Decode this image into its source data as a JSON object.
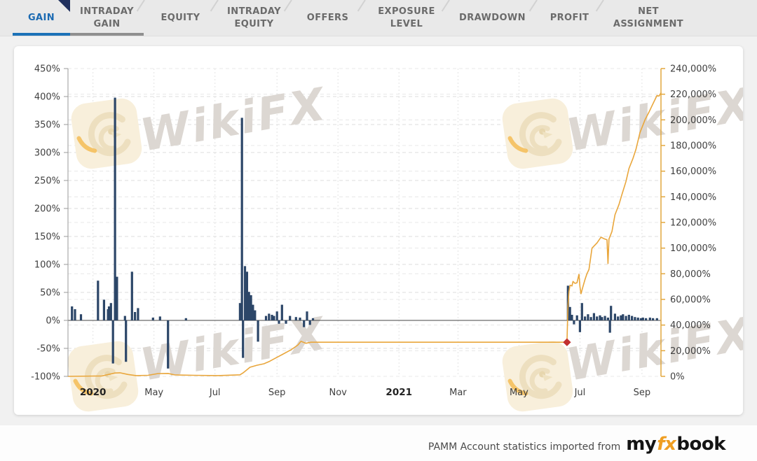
{
  "tabs": {
    "items": [
      {
        "label": "GAIN",
        "active": true
      },
      {
        "label": "INTRADAY GAIN",
        "active": false
      },
      {
        "label": "EQUITY",
        "active": false
      },
      {
        "label": "INTRADAY EQUITY",
        "active": false
      },
      {
        "label": "OFFERS",
        "active": false
      },
      {
        "label": "EXPOSURE LEVEL",
        "active": false
      },
      {
        "label": "DRAWDOWN",
        "active": false
      },
      {
        "label": "PROFIT",
        "active": false
      },
      {
        "label": "NET ASSIGNMENT",
        "active": false
      }
    ]
  },
  "watermark": {
    "text": "WikiFX"
  },
  "footer": {
    "attribution": "PAMM Account statistics imported from",
    "logo_part1": "my",
    "logo_part2": "fx",
    "logo_part3": "book"
  },
  "colors": {
    "bar": "#2c4668",
    "line": "#e9a63b",
    "marker": "#c22f2f",
    "tab_active": "#1b6ab2",
    "underline_active": "#1c72b8",
    "underline_neighbor": "#8f8f8f",
    "axis_left": "#9a9a9a",
    "axis_right": "#e2a73e",
    "zero_line": "#444444",
    "tick_text": "#3f3f3f",
    "watermark_text": "#dcd7d2",
    "watermark_logo_bg": "#f8efdb"
  },
  "chart_data": {
    "type": "combo",
    "x_range": [
      "2020-02-05",
      "2021-09-20"
    ],
    "x_ticks": [
      {
        "label": "2020",
        "date": "2020-03-01",
        "bold": true
      },
      {
        "label": "May",
        "date": "2020-05-01",
        "bold": false
      },
      {
        "label": "Jul",
        "date": "2020-07-01",
        "bold": false
      },
      {
        "label": "Sep",
        "date": "2020-09-01",
        "bold": false
      },
      {
        "label": "Nov",
        "date": "2020-11-01",
        "bold": false
      },
      {
        "label": "2021",
        "date": "2021-01-01",
        "bold": true
      },
      {
        "label": "Mar",
        "date": "2021-03-01",
        "bold": false
      },
      {
        "label": "May",
        "date": "2021-05-01",
        "bold": false
      },
      {
        "label": "Jul",
        "date": "2021-07-01",
        "bold": false
      },
      {
        "label": "Sep",
        "date": "2021-09-01",
        "bold": false
      }
    ],
    "left_axis": {
      "min": -100,
      "max": 450,
      "step": 50,
      "ticks": [
        {
          "label": "450%",
          "value": 450
        },
        {
          "label": "400%",
          "value": 400
        },
        {
          "label": "350%",
          "value": 350
        },
        {
          "label": "300%",
          "value": 300
        },
        {
          "label": "250%",
          "value": 250
        },
        {
          "label": "200%",
          "value": 200
        },
        {
          "label": "150%",
          "value": 150
        },
        {
          "label": "100%",
          "value": 100
        },
        {
          "label": "50%",
          "value": 50
        },
        {
          "label": "0%",
          "value": 0
        },
        {
          "label": "-50%",
          "value": -50
        },
        {
          "label": "-100%",
          "value": -100
        }
      ]
    },
    "right_axis": {
      "min": 0,
      "max": 240000,
      "step": 20000,
      "ticks": [
        {
          "label": "240,000%",
          "value": 240000
        },
        {
          "label": "220,000%",
          "value": 220000
        },
        {
          "label": "200,000%",
          "value": 200000
        },
        {
          "label": "180,000%",
          "value": 180000
        },
        {
          "label": "160,000%",
          "value": 160000
        },
        {
          "label": "140,000%",
          "value": 140000
        },
        {
          "label": "120,000%",
          "value": 120000
        },
        {
          "label": "100,000%",
          "value": 100000
        },
        {
          "label": "80,000%",
          "value": 80000
        },
        {
          "label": "60,000%",
          "value": 60000
        },
        {
          "label": "40,000%",
          "value": 40000
        },
        {
          "label": "20,000%",
          "value": 20000
        },
        {
          "label": "0%",
          "value": 0
        }
      ]
    },
    "series": [
      {
        "name": "daily-gain-bars",
        "type": "bar",
        "axis": "left",
        "points": [
          [
            "2020-02-09",
            25
          ],
          [
            "2020-02-12",
            20
          ],
          [
            "2020-02-18",
            11
          ],
          [
            "2020-03-06",
            71
          ],
          [
            "2020-03-12",
            37
          ],
          [
            "2020-03-16",
            20
          ],
          [
            "2020-03-17",
            25
          ],
          [
            "2020-03-19",
            31
          ],
          [
            "2020-03-21",
            -77
          ],
          [
            "2020-03-23",
            398
          ],
          [
            "2020-03-25",
            78
          ],
          [
            "2020-04-02",
            8
          ],
          [
            "2020-04-03",
            -74
          ],
          [
            "2020-04-09",
            87
          ],
          [
            "2020-04-12",
            15
          ],
          [
            "2020-04-15",
            22
          ],
          [
            "2020-04-30",
            5
          ],
          [
            "2020-05-07",
            7
          ],
          [
            "2020-05-15",
            -86
          ],
          [
            "2020-06-02",
            4
          ],
          [
            "2020-07-26",
            31
          ],
          [
            "2020-07-28",
            362
          ],
          [
            "2020-07-29",
            -67
          ],
          [
            "2020-07-31",
            97
          ],
          [
            "2020-08-02",
            87
          ],
          [
            "2020-08-04",
            51
          ],
          [
            "2020-08-06",
            45
          ],
          [
            "2020-08-08",
            28
          ],
          [
            "2020-08-10",
            18
          ],
          [
            "2020-08-13",
            -38
          ],
          [
            "2020-08-21",
            8
          ],
          [
            "2020-08-24",
            12
          ],
          [
            "2020-08-27",
            10
          ],
          [
            "2020-08-29",
            8
          ],
          [
            "2020-09-01",
            16
          ],
          [
            "2020-09-03",
            -6
          ],
          [
            "2020-09-06",
            28
          ],
          [
            "2020-09-10",
            -6
          ],
          [
            "2020-09-14",
            8
          ],
          [
            "2020-09-20",
            6
          ],
          [
            "2020-09-24",
            5
          ],
          [
            "2020-09-28",
            -12
          ],
          [
            "2020-10-01",
            16
          ],
          [
            "2020-10-04",
            -8
          ],
          [
            "2020-10-07",
            4
          ],
          [
            "2021-06-19",
            62
          ],
          [
            "2021-06-21",
            24
          ],
          [
            "2021-06-23",
            10
          ],
          [
            "2021-06-25",
            -7
          ],
          [
            "2021-06-28",
            9
          ],
          [
            "2021-07-01",
            -21
          ],
          [
            "2021-07-03",
            31
          ],
          [
            "2021-07-06",
            7
          ],
          [
            "2021-07-09",
            11
          ],
          [
            "2021-07-12",
            6
          ],
          [
            "2021-07-15",
            13
          ],
          [
            "2021-07-18",
            7
          ],
          [
            "2021-07-21",
            9
          ],
          [
            "2021-07-23",
            6
          ],
          [
            "2021-07-26",
            8
          ],
          [
            "2021-07-29",
            5
          ],
          [
            "2021-07-31",
            -22
          ],
          [
            "2021-08-01",
            26
          ],
          [
            "2021-08-05",
            12
          ],
          [
            "2021-08-08",
            7
          ],
          [
            "2021-08-11",
            9
          ],
          [
            "2021-08-13",
            11
          ],
          [
            "2021-08-16",
            8
          ],
          [
            "2021-08-19",
            10
          ],
          [
            "2021-08-22",
            8
          ],
          [
            "2021-08-25",
            6
          ],
          [
            "2021-08-28",
            5
          ],
          [
            "2021-08-31",
            4
          ],
          [
            "2021-09-02",
            5
          ],
          [
            "2021-09-05",
            4
          ],
          [
            "2021-09-09",
            5
          ],
          [
            "2021-09-12",
            4
          ],
          [
            "2021-09-16",
            4
          ]
        ]
      },
      {
        "name": "cumulative-growth-line",
        "type": "line",
        "axis": "right",
        "points": [
          [
            "2020-02-05",
            0
          ],
          [
            "2020-03-10",
            300
          ],
          [
            "2020-03-23",
            2600
          ],
          [
            "2020-03-28",
            2800
          ],
          [
            "2020-04-05",
            1500
          ],
          [
            "2020-04-13",
            600
          ],
          [
            "2020-04-25",
            800
          ],
          [
            "2020-05-05",
            2200
          ],
          [
            "2020-05-15",
            2300
          ],
          [
            "2020-05-22",
            1100
          ],
          [
            "2020-06-10",
            800
          ],
          [
            "2020-07-04",
            600
          ],
          [
            "2020-07-26",
            1200
          ],
          [
            "2020-07-29",
            2700
          ],
          [
            "2020-08-02",
            5200
          ],
          [
            "2020-08-05",
            7100
          ],
          [
            "2020-08-12",
            8700
          ],
          [
            "2020-08-19",
            9800
          ],
          [
            "2020-08-24",
            11500
          ],
          [
            "2020-08-29",
            13600
          ],
          [
            "2020-09-06",
            16900
          ],
          [
            "2020-09-15",
            20700
          ],
          [
            "2020-09-22",
            24500
          ],
          [
            "2020-09-25",
            27300
          ],
          [
            "2020-09-30",
            25800
          ],
          [
            "2020-10-05",
            26600
          ],
          [
            "2021-06-18",
            26600
          ],
          [
            "2021-06-19",
            55000
          ],
          [
            "2021-06-20",
            66000
          ],
          [
            "2021-06-21",
            71000
          ],
          [
            "2021-06-23",
            70500
          ],
          [
            "2021-06-24",
            74000
          ],
          [
            "2021-06-26",
            72500
          ],
          [
            "2021-06-28",
            73000
          ],
          [
            "2021-06-30",
            79600
          ],
          [
            "2021-07-01",
            70000
          ],
          [
            "2021-07-02",
            64400
          ],
          [
            "2021-07-04",
            70000
          ],
          [
            "2021-07-06",
            75500
          ],
          [
            "2021-07-08",
            80000
          ],
          [
            "2021-07-10",
            83400
          ],
          [
            "2021-07-13",
            100000
          ],
          [
            "2021-07-18",
            104000
          ],
          [
            "2021-07-22",
            108500
          ],
          [
            "2021-07-26",
            107000
          ],
          [
            "2021-07-28",
            106500
          ],
          [
            "2021-07-29",
            88000
          ],
          [
            "2021-07-30",
            107000
          ],
          [
            "2021-08-02",
            113000
          ],
          [
            "2021-08-05",
            126000
          ],
          [
            "2021-08-09",
            134000
          ],
          [
            "2021-08-12",
            142000
          ],
          [
            "2021-08-16",
            152000
          ],
          [
            "2021-08-19",
            162000
          ],
          [
            "2021-08-23",
            170000
          ],
          [
            "2021-08-26",
            177000
          ],
          [
            "2021-08-30",
            190000
          ],
          [
            "2021-09-04",
            200000
          ],
          [
            "2021-09-08",
            206000
          ],
          [
            "2021-09-11",
            211000
          ],
          [
            "2021-09-16",
            219000
          ],
          [
            "2021-09-18",
            218500
          ],
          [
            "2021-09-20",
            221000
          ]
        ]
      }
    ],
    "marker": {
      "shape": "diamond",
      "date": "2021-06-18",
      "value": 26600
    },
    "grid": "dashed",
    "legend": "none",
    "title": ""
  }
}
